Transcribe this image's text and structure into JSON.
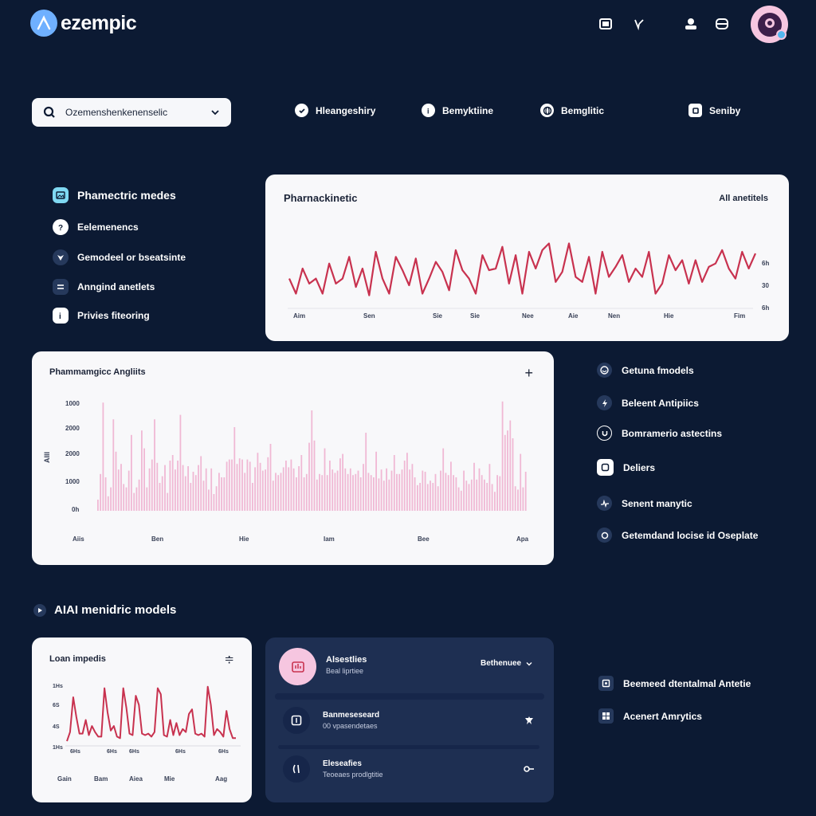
{
  "header": {
    "brand": "ezempic",
    "icons": [
      "window-icon",
      "chevron-v-icon",
      "user-icon",
      "wallet-icon"
    ]
  },
  "search": {
    "value": "Ozemenshenkenenselic"
  },
  "topnav": [
    {
      "label": "Hleangeshiry",
      "icon": "check-icon"
    },
    {
      "label": "Bemyktiine",
      "icon": "info-icon"
    },
    {
      "label": "Bemglitic",
      "icon": "globe-icon"
    },
    {
      "label": "Seniby",
      "icon": "square-icon"
    }
  ],
  "left_menu": [
    {
      "label": "Phamectric medes",
      "icon": "image-icon"
    },
    {
      "label": "Eelemenencs",
      "icon": "question-icon"
    },
    {
      "label": "Gemodeel or bseatsinte",
      "icon": "shield-icon"
    },
    {
      "label": "Anngind anetlets",
      "icon": "list-icon"
    },
    {
      "label": "Privies fiteoring",
      "icon": "info-icon"
    }
  ],
  "pk_card": {
    "title": "Pharnackinetic",
    "filter": "All anetitels",
    "x_labels": [
      "Aim",
      "Sen",
      "Sie",
      "Sie",
      "Nee",
      "Aie",
      "Nen",
      "Hie",
      "Fim"
    ],
    "y_labels": [
      "6h",
      "30",
      "6h"
    ]
  },
  "pd_card": {
    "title": "Phammamgicc Angliits",
    "ylabel": "AIII",
    "x_labels": [
      "Aiis",
      "Ben",
      "Hie",
      "Iam",
      "Bee",
      "Apa"
    ],
    "y_labels": [
      "1000",
      "2000",
      "2000",
      "1000",
      "0h"
    ]
  },
  "right_list": [
    {
      "label": "Getuna fmodels",
      "icon": "smile-icon"
    },
    {
      "label": "Beleent Antipiics",
      "icon": "bolt-icon"
    },
    {
      "label": "Bomramerio astectins",
      "icon": "u-icon"
    },
    {
      "label": "Deliers",
      "icon": "square-icon"
    },
    {
      "label": "Senent manytic",
      "icon": "pulse-icon"
    },
    {
      "label": "Getemdand locise id Oseplate",
      "icon": "circle-icon"
    }
  ],
  "section": {
    "title": "AIAI menidric models"
  },
  "load_card": {
    "title": "Loan impedis",
    "y_labels": [
      "1Hs",
      "6S",
      "4S",
      "1Hs"
    ],
    "x_labels_top": [
      "6Hs",
      "6Hs",
      "6Hs",
      "6Hs",
      "6Hs"
    ],
    "x_labels_bottom": [
      "Gain",
      "Bam",
      "Aiea",
      "Mie",
      "Aag"
    ]
  },
  "dark_panel": {
    "header_title": "Alsestlies",
    "header_sub": "Beal liprtiee",
    "dropdown": "Bethenuee",
    "rows": [
      {
        "title": "Banmeseseard",
        "sub": "00 vpasendetaes"
      },
      {
        "title": "Eleseafies",
        "sub": "Teoeaes prodlgtitie"
      }
    ]
  },
  "right_bottom": [
    {
      "label": "Beemeed dtentalmal Antetie",
      "icon": "image-icon"
    },
    {
      "label": "Acenert Amrytics",
      "icon": "grid-icon"
    }
  ],
  "colors": {
    "background": "#0c1a33",
    "line": "#c8324f",
    "bars": "#f0b8d4",
    "avatar": "#f6c6e0"
  },
  "chart_data": [
    {
      "type": "line",
      "title": "Pharnackinetic",
      "values": [
        28,
        10,
        40,
        22,
        28,
        10,
        46,
        22,
        28,
        54,
        18,
        40,
        8,
        60,
        28,
        10,
        54,
        38,
        20,
        52,
        10,
        28,
        48,
        36,
        14,
        62,
        38,
        28,
        10,
        56,
        38,
        40,
        66,
        22,
        56,
        10,
        60,
        40,
        62,
        70,
        24,
        36,
        70,
        30,
        24,
        54,
        10,
        60,
        30,
        42,
        56,
        24,
        40,
        30,
        60,
        10,
        22,
        56,
        38,
        50,
        22,
        50,
        24,
        42,
        46,
        62,
        40,
        28,
        60,
        40,
        58
      ]
    },
    {
      "type": "bar",
      "title": "Phammamgicc Angliits",
      "values": [
        0.1,
        0.33,
        0.97,
        0.3,
        0.13,
        0.21,
        0.82,
        0.53,
        0.37,
        0.42,
        0.24,
        0.21,
        0.36,
        0.68,
        0.16,
        0.21,
        0.28,
        0.72,
        0.56,
        0.21,
        0.38,
        0.46,
        0.82,
        0.43,
        0.25,
        0.31,
        0.41,
        0.16,
        0.45,
        0.5,
        0.37,
        0.45,
        0.86,
        0.41,
        0.31,
        0.4,
        0.25,
        0.35,
        0.32,
        0.41,
        0.49,
        0.27,
        0.38,
        0.19,
        0.38,
        0.15,
        0.22,
        0.34,
        0.3,
        0.3,
        0.44,
        0.46,
        0.46,
        0.75,
        0.42,
        0.47,
        0.46,
        0.34,
        0.46,
        0.44,
        0.25,
        0.39,
        0.52,
        0.43,
        0.36,
        0.37,
        0.48,
        0.6,
        0.27,
        0.34,
        0.32,
        0.34,
        0.39,
        0.45,
        0.39,
        0.46,
        0.38,
        0.3,
        0.4,
        0.5,
        0.3,
        0.33,
        0.61,
        0.9,
        0.63,
        0.28,
        0.33,
        0.32,
        0.56,
        0.32,
        0.45,
        0.37,
        0.34,
        0.36,
        0.47,
        0.51,
        0.38,
        0.33,
        0.38,
        0.32,
        0.33,
        0.36,
        0.3,
        0.42,
        0.7,
        0.34,
        0.32,
        0.3,
        0.53,
        0.29,
        0.37,
        0.27,
        0.38,
        0.28,
        0.36,
        0.5,
        0.33,
        0.33,
        0.37,
        0.45,
        0.52,
        0.37,
        0.42,
        0.3,
        0.23,
        0.25,
        0.36,
        0.35,
        0.24,
        0.27,
        0.25,
        0.33,
        0.22,
        0.36,
        0.56,
        0.34,
        0.32,
        0.44,
        0.32,
        0.3,
        0.21,
        0.18,
        0.36,
        0.27,
        0.24,
        0.28,
        0.43,
        0.28,
        0.38,
        0.32,
        0.28,
        0.25,
        0.42,
        0.24,
        0.17,
        0.32,
        0.31,
        0.98,
        0.68,
        0.72,
        0.81,
        0.65,
        0.22,
        0.19,
        0.51,
        0.21,
        0.35
      ]
    },
    {
      "type": "line",
      "title": "Loan impedis",
      "values": [
        2,
        14,
        60,
        34,
        12,
        12,
        30,
        10,
        22,
        14,
        8,
        8,
        72,
        40,
        16,
        22,
        8,
        6,
        72,
        46,
        12,
        10,
        62,
        50,
        12,
        10,
        12,
        8,
        14,
        72,
        64,
        10,
        8,
        30,
        10,
        26,
        10,
        18,
        14,
        38,
        44,
        12,
        10,
        12,
        8,
        74,
        50,
        10,
        18,
        14,
        8,
        42,
        18,
        6,
        6
      ]
    }
  ]
}
